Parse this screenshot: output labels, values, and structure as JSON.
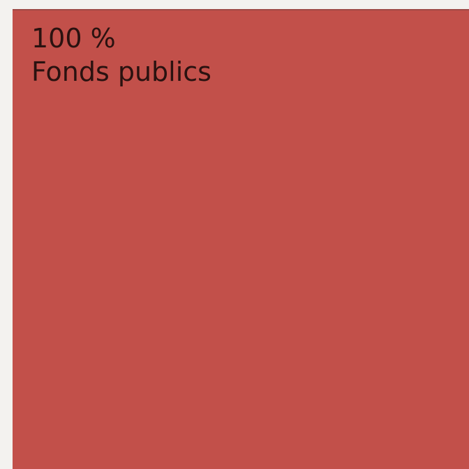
{
  "chart_data": {
    "type": "treemap",
    "unit": "%",
    "categories": [
      "Fonds publics"
    ],
    "values": [
      100
    ],
    "labels": [
      "100 %"
    ],
    "colors": [
      "#c2504a"
    ]
  }
}
